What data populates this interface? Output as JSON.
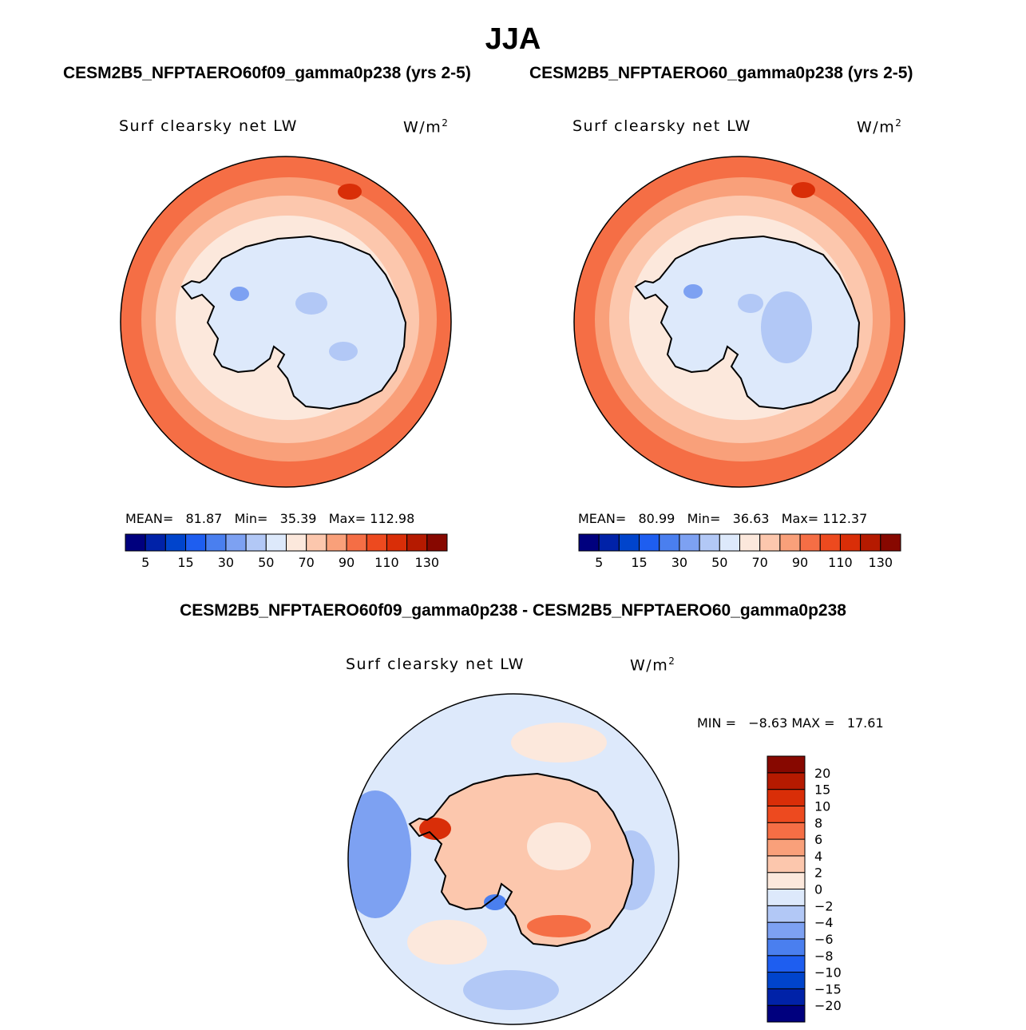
{
  "figure": {
    "title": "JJA",
    "case1_title": "CESM2B5_NFPTAERO60f09_gamma0p238 (yrs 2-5)",
    "case2_title": "CESM2B5_NFPTAERO60_gamma0p238 (yrs 2-5)",
    "diff_title": "CESM2B5_NFPTAERO60f09_gamma0p238 - CESM2B5_NFPTAERO60_gamma0p238"
  },
  "panels": [
    {
      "variable": "Surf clearsky net LW",
      "units_base": "W/m",
      "units_exp": "2",
      "stats": {
        "mean_label": "MEAN=",
        "mean": "81.87",
        "min_label": "Min=",
        "min": "35.39",
        "max_label": "Max=",
        "max": "112.98"
      }
    },
    {
      "variable": "Surf clearsky net LW",
      "units_base": "W/m",
      "units_exp": "2",
      "stats": {
        "mean_label": "MEAN=",
        "mean": "80.99",
        "min_label": "Min=",
        "min": "36.63",
        "max_label": "Max=",
        "max": "112.37"
      }
    },
    {
      "variable": "Surf clearsky net LW",
      "units_base": "W/m",
      "units_exp": "2",
      "stats": {
        "minmax": "MIN =   −8.63 MAX =   17.61"
      }
    }
  ],
  "colorbars": {
    "abs": {
      "colors": [
        "#00007e",
        "#0022a8",
        "#0044cc",
        "#1e5ef0",
        "#4a7fef",
        "#7da1f2",
        "#b2c8f6",
        "#dde9fb",
        "#fce8dc",
        "#fcc7ad",
        "#f9a07a",
        "#f56e45",
        "#ed4a1f",
        "#d92e08",
        "#b51a00",
        "#870800"
      ],
      "labels": [
        "5",
        "15",
        "30",
        "50",
        "70",
        "90",
        "110",
        "130"
      ]
    },
    "diff": {
      "colors": [
        "#00007e",
        "#0022a8",
        "#0044cc",
        "#1e5ef0",
        "#4a7fef",
        "#7da1f2",
        "#b2c8f6",
        "#dde9fb",
        "#fce8dc",
        "#fcc7ad",
        "#f9a07a",
        "#f56e45",
        "#ed4a1f",
        "#d92e08",
        "#b51a00",
        "#870800"
      ],
      "labels": [
        "−20",
        "−15",
        "−10",
        "−8",
        "−6",
        "−4",
        "−2",
        "0",
        "2",
        "4",
        "6",
        "8",
        "10",
        "15",
        "20"
      ]
    }
  },
  "chart_data": [
    {
      "type": "heatmap",
      "title": "CESM2B5_NFPTAERO60f09_gamma0p238 (yrs 2-5)",
      "field": "Surf clearsky net LW",
      "units": "W/m2",
      "projection": "south polar stereographic",
      "season": "JJA",
      "levels": [
        5,
        10,
        15,
        20,
        30,
        40,
        50,
        60,
        70,
        80,
        90,
        100,
        110,
        120,
        130
      ],
      "mean": 81.87,
      "min": 35.39,
      "max": 112.98
    },
    {
      "type": "heatmap",
      "title": "CESM2B5_NFPTAERO60_gamma0p238 (yrs 2-5)",
      "field": "Surf clearsky net LW",
      "units": "W/m2",
      "projection": "south polar stereographic",
      "season": "JJA",
      "levels": [
        5,
        10,
        15,
        20,
        30,
        40,
        50,
        60,
        70,
        80,
        90,
        100,
        110,
        120,
        130
      ],
      "mean": 80.99,
      "min": 36.63,
      "max": 112.37
    },
    {
      "type": "heatmap",
      "title": "CESM2B5_NFPTAERO60f09_gamma0p238 - CESM2B5_NFPTAERO60_gamma0p238",
      "field": "Surf clearsky net LW",
      "units": "W/m2",
      "projection": "south polar stereographic",
      "season": "JJA",
      "levels": [
        -20,
        -15,
        -10,
        -8,
        -6,
        -4,
        -2,
        0,
        2,
        4,
        6,
        8,
        10,
        15,
        20
      ],
      "min": -8.63,
      "max": 17.61
    }
  ]
}
